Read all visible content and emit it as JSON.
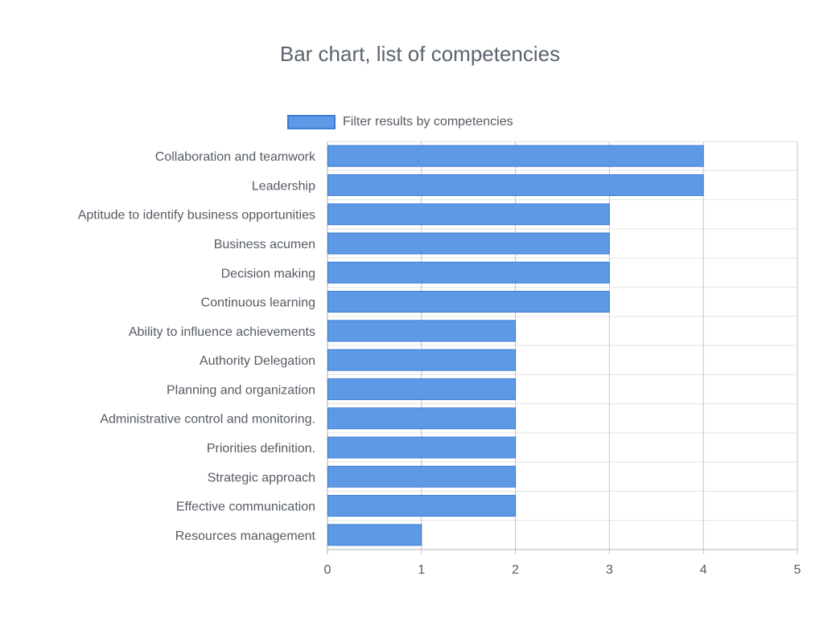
{
  "chart_data": {
    "type": "bar",
    "orientation": "horizontal",
    "title": "Bar chart, list of competencies",
    "categories": [
      "Collaboration and teamwork",
      "Leadership",
      "Aptitude to identify business opportunities",
      "Business acumen",
      "Decision making",
      "Continuous learning",
      "Ability to influence achievements",
      "Authority Delegation",
      "Planning and organization",
      "Administrative control and monitoring.",
      "Priorities definition.",
      "Strategic approach",
      "Effective communication",
      "Resources management"
    ],
    "series": [
      {
        "name": "Filter results by competencies",
        "values": [
          4,
          4,
          3,
          3,
          3,
          3,
          2,
          2,
          2,
          2,
          2,
          2,
          2,
          1
        ],
        "color": "#5e99e6",
        "border_color": "#3a7bd5"
      }
    ],
    "xlim": [
      0,
      5
    ],
    "x_ticks": [
      "0",
      "1",
      "2",
      "3",
      "4",
      "5"
    ],
    "xlabel": "",
    "ylabel": "",
    "grid": true,
    "legend_position": "top"
  }
}
